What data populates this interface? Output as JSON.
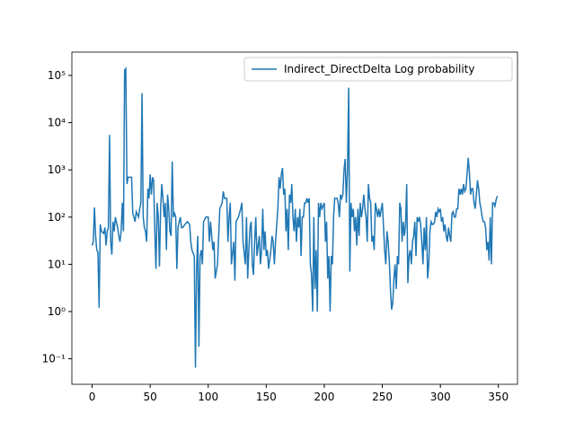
{
  "chart_data": {
    "type": "line",
    "log_scale_y": true,
    "x": [
      0,
      1,
      2,
      3,
      4,
      5,
      6,
      7,
      8,
      10,
      11,
      12,
      13,
      14,
      15,
      16,
      17,
      18,
      19,
      20,
      22,
      23,
      24,
      25,
      26,
      27,
      28,
      29,
      30,
      31,
      32,
      34,
      35,
      36,
      37,
      38,
      40,
      41,
      42,
      43,
      44,
      45,
      46,
      47,
      48,
      49,
      50,
      51,
      52,
      53,
      54,
      55,
      56,
      57,
      58,
      59,
      60,
      61,
      62,
      63,
      64,
      65,
      66,
      67,
      68,
      69,
      70,
      71,
      72,
      73,
      74,
      75,
      76,
      77,
      78,
      80,
      82,
      84,
      85,
      86,
      88,
      89,
      90,
      91,
      92,
      93,
      94,
      95,
      96,
      98,
      100,
      101,
      102,
      104,
      105,
      106,
      108,
      110,
      112,
      113,
      114,
      116,
      117,
      118,
      119,
      120,
      122,
      123,
      124,
      126,
      128,
      129,
      130,
      132,
      133,
      134,
      135,
      136,
      137,
      138,
      139,
      140,
      141,
      142,
      144,
      145,
      146,
      147,
      148,
      149,
      150,
      151,
      152,
      154,
      155,
      156,
      157,
      158,
      160,
      161,
      162,
      163,
      164,
      165,
      166,
      167,
      168,
      169,
      170,
      171,
      172,
      173,
      174,
      175,
      176,
      177,
      178,
      179,
      180,
      181,
      182,
      183,
      184,
      185,
      186,
      187,
      188,
      189,
      190,
      191,
      192,
      193,
      194,
      195,
      196,
      197,
      198,
      200,
      201,
      202,
      203,
      204,
      205,
      206,
      207,
      208,
      209,
      210,
      211,
      212,
      213,
      214,
      215,
      216,
      217,
      218,
      219,
      220,
      221,
      222,
      223,
      224,
      225,
      226,
      227,
      228,
      229,
      230,
      231,
      232,
      233,
      234,
      235,
      236,
      237,
      238,
      239,
      240,
      241,
      242,
      243,
      244,
      245,
      246,
      247,
      248,
      250,
      252,
      253,
      254,
      255,
      256,
      257,
      258,
      259,
      260,
      261,
      262,
      263,
      264,
      265,
      266,
      267,
      268,
      269,
      270,
      271,
      272,
      273,
      274,
      275,
      276,
      277,
      278,
      279,
      280,
      281,
      282,
      283,
      284,
      285,
      286,
      287,
      288,
      289,
      290,
      291,
      292,
      293,
      294,
      295,
      296,
      297,
      298,
      299,
      300,
      301,
      302,
      303,
      304,
      305,
      306,
      307,
      308,
      309,
      310,
      311,
      312,
      313,
      314,
      315,
      316,
      317,
      318,
      319,
      320,
      321,
      322,
      323,
      324,
      325,
      326,
      327,
      328,
      329,
      330,
      331,
      332,
      333,
      334,
      335,
      336,
      337,
      338,
      339,
      340,
      341,
      342,
      343,
      344,
      345,
      346,
      347,
      348,
      349
    ],
    "series": [
      {
        "name": "Indirect_DirectDelta Log probability",
        "color": "#1f77b4",
        "values": [
          25,
          30,
          160,
          40,
          20,
          18,
          1.2,
          70,
          50,
          45,
          60,
          25,
          50,
          60,
          5500,
          30,
          16,
          80,
          50,
          100,
          60,
          40,
          30,
          50,
          200,
          50,
          130000,
          140000,
          500,
          700,
          700,
          700,
          120,
          100,
          80,
          130,
          100,
          150,
          200,
          42000,
          100,
          60,
          50,
          30,
          400,
          250,
          800,
          300,
          700,
          600,
          50,
          8,
          200,
          100,
          9,
          150,
          500,
          250,
          100,
          200,
          20,
          300,
          150,
          50,
          40,
          1500,
          100,
          120,
          100,
          8,
          60,
          80,
          100,
          60,
          60,
          70,
          80,
          70,
          30,
          20,
          15,
          0.065,
          8,
          40,
          0.18,
          15,
          20,
          10,
          80,
          100,
          100,
          30,
          80,
          20,
          30,
          5,
          10,
          150,
          200,
          350,
          250,
          250,
          30,
          100,
          200,
          10,
          30,
          4.5,
          80,
          100,
          150,
          200,
          30,
          10,
          100,
          5,
          20,
          60,
          80,
          10,
          6,
          30,
          100,
          15,
          40,
          10,
          20,
          150,
          20,
          50,
          15,
          20,
          8,
          20,
          40,
          30,
          10,
          30,
          150,
          700,
          400,
          800,
          1100,
          300,
          400,
          50,
          150,
          20,
          300,
          200,
          500,
          100,
          50,
          150,
          30,
          100,
          60,
          150,
          15,
          100,
          100,
          200,
          200,
          250,
          200,
          250,
          10,
          6,
          1.0,
          100,
          3,
          20,
          1.0,
          200,
          100,
          200,
          150,
          200,
          30,
          80,
          5,
          15,
          1.0,
          15,
          10,
          100,
          250,
          250,
          250,
          200,
          100,
          300,
          250,
          300,
          1000,
          1700,
          200,
          1000,
          55000,
          7,
          200,
          100,
          150,
          50,
          100,
          25,
          150,
          40,
          200,
          100,
          150,
          300,
          150,
          100,
          30,
          500,
          250,
          200,
          30,
          40,
          20,
          200,
          150,
          100,
          150,
          100,
          200,
          20,
          10,
          50,
          30,
          12,
          3,
          1.1,
          1.5,
          5,
          10,
          3,
          15,
          10,
          200,
          150,
          30,
          80,
          40,
          70,
          500,
          4,
          15,
          20,
          10,
          30,
          40,
          80,
          15,
          100,
          80,
          100,
          70,
          30,
          10,
          60,
          20,
          100,
          5,
          10,
          50,
          80,
          70,
          70,
          80,
          130,
          100,
          150,
          130,
          150,
          80,
          100,
          50,
          70,
          40,
          30,
          60,
          40,
          30,
          120,
          130,
          100,
          100,
          150,
          150,
          400,
          300,
          400,
          300,
          500,
          350,
          400,
          800,
          1800,
          900,
          300,
          400,
          400,
          200,
          150,
          300,
          600,
          400,
          200,
          150,
          100,
          80,
          80,
          60,
          20,
          30,
          12,
          100,
          10,
          200,
          200,
          170,
          230,
          280
        ]
      }
    ],
    "xlim": [
      -17.45,
      366.45
    ],
    "ylim": [
      0.0288,
      312000
    ],
    "xticks": [
      0,
      50,
      100,
      150,
      200,
      250,
      300,
      350
    ],
    "yticks": [
      {
        "value": 0.1,
        "label": "10⁻¹"
      },
      {
        "value": 1,
        "label": "10⁰"
      },
      {
        "value": 10,
        "label": "10¹"
      },
      {
        "value": 100,
        "label": "10²"
      },
      {
        "value": 1000,
        "label": "10³"
      },
      {
        "value": 10000,
        "label": "10⁴"
      },
      {
        "value": 100000,
        "label": "10⁵"
      }
    ],
    "legend": "upper right"
  }
}
